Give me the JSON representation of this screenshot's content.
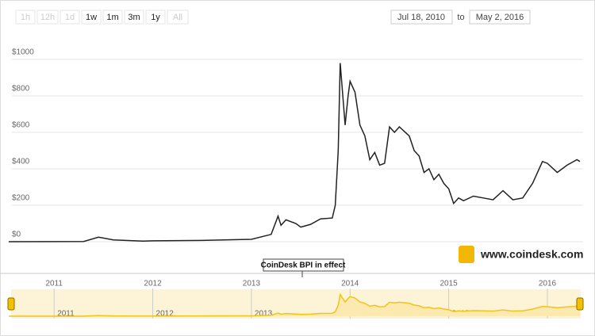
{
  "ui": {
    "range_buttons": [
      "1h",
      "12h",
      "1d",
      "1w",
      "1m",
      "3m",
      "1y",
      "All"
    ],
    "range_enabled": [
      false,
      false,
      false,
      true,
      true,
      true,
      true,
      false
    ],
    "from": "Jul 18, 2010",
    "to_label": "to",
    "to": "May 2, 2016",
    "watermark": "www.coindesk.com"
  },
  "chart_data": {
    "type": "line",
    "annotation": "CoinDesk BPI in effect",
    "series": [
      {
        "color": "#222222",
        "x": [
          2010.54,
          2011.0,
          2011.3,
          2011.45,
          2011.6,
          2011.9,
          2012.0,
          2012.5,
          2012.9,
          2013.0,
          2013.2,
          2013.27,
          2013.3,
          2013.35,
          2013.45,
          2013.5,
          2013.6,
          2013.7,
          2013.82,
          2013.85,
          2013.88,
          2013.9,
          2013.95,
          2013.98,
          2014.0,
          2014.05,
          2014.1,
          2014.15,
          2014.2,
          2014.25,
          2014.3,
          2014.35,
          2014.4,
          2014.45,
          2014.5,
          2014.6,
          2014.65,
          2014.7,
          2014.75,
          2014.8,
          2014.85,
          2014.9,
          2014.95,
          2015.0,
          2015.05,
          2015.1,
          2015.15,
          2015.25,
          2015.35,
          2015.45,
          2015.55,
          2015.65,
          2015.75,
          2015.85,
          2015.95,
          2016.0,
          2016.1,
          2016.2,
          2016.3,
          2016.33
        ],
        "values": [
          0.1,
          0.3,
          1,
          25,
          10,
          3,
          5,
          7,
          12,
          13,
          40,
          140,
          90,
          120,
          100,
          80,
          95,
          125,
          130,
          200,
          500,
          980,
          640,
          800,
          880,
          820,
          640,
          580,
          450,
          490,
          420,
          430,
          630,
          600,
          630,
          580,
          500,
          470,
          380,
          400,
          340,
          370,
          320,
          290,
          210,
          240,
          225,
          250,
          240,
          230,
          280,
          230,
          240,
          320,
          440,
          430,
          380,
          420,
          450,
          440
        ]
      }
    ],
    "xlim": [
      2010.54,
      2016.33
    ],
    "xticks": [
      2011,
      2012,
      2013,
      2014,
      2015,
      2016
    ],
    "ylim": [
      0,
      1000
    ],
    "yticks": [
      {
        "value": 0,
        "label": "$0"
      },
      {
        "value": 200,
        "label": "$200"
      },
      {
        "value": 400,
        "label": "$400"
      },
      {
        "value": 600,
        "label": "$600"
      },
      {
        "value": 800,
        "label": "$800"
      },
      {
        "value": 1000,
        "label": "$1000"
      }
    ],
    "grid": true
  }
}
